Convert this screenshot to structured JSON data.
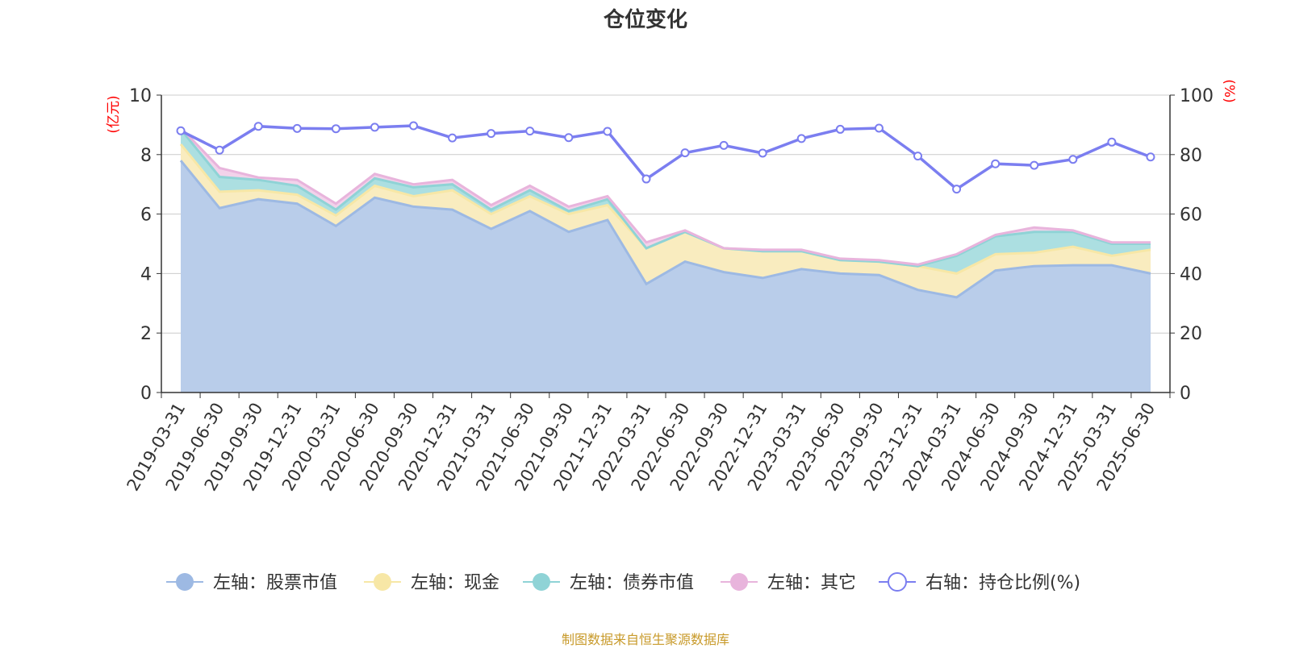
{
  "page": {
    "title": "仓位变化",
    "source": "制图数据来自恒生聚源数据库"
  },
  "chart_data": {
    "type": "area",
    "title": "仓位变化",
    "y_left_unit": "(亿元)",
    "y_right_unit": "(%)",
    "y_left_lim": [
      0,
      10
    ],
    "y_left_ticks": [
      0,
      2,
      4,
      6,
      8,
      10
    ],
    "y_right_lim": [
      0,
      100
    ],
    "y_right_ticks": [
      0,
      20,
      40,
      60,
      80,
      100
    ],
    "grid": true,
    "legend_position": "bottom-center",
    "categories": [
      "2019-03-31",
      "2019-06-30",
      "2019-09-30",
      "2019-12-31",
      "2020-03-31",
      "2020-06-30",
      "2020-09-30",
      "2020-12-31",
      "2021-03-31",
      "2021-06-30",
      "2021-09-30",
      "2021-12-31",
      "2022-03-31",
      "2022-06-30",
      "2022-09-30",
      "2022-12-31",
      "2023-03-31",
      "2023-06-30",
      "2023-09-30",
      "2023-12-31",
      "2024-03-31",
      "2024-06-30",
      "2024-09-30",
      "2024-12-31",
      "2025-03-31",
      "2025-06-30"
    ],
    "series": [
      {
        "name": "左轴：股票市值",
        "axis": "left",
        "kind": "stack",
        "color": "#9db9e3",
        "fill": "#b9cdea",
        "values": [
          7.8,
          6.2,
          6.5,
          6.35,
          5.6,
          6.55,
          6.25,
          6.15,
          5.5,
          6.1,
          5.4,
          5.8,
          3.65,
          4.4,
          4.05,
          3.85,
          4.15,
          4.0,
          3.95,
          3.45,
          3.2,
          4.1,
          4.25,
          4.28,
          4.28,
          4.0
        ]
      },
      {
        "name": "左轴：现金",
        "axis": "left",
        "kind": "stack",
        "color": "#f7e7a6",
        "fill": "#f9ecbf",
        "values": [
          0.55,
          0.55,
          0.3,
          0.3,
          0.35,
          0.4,
          0.35,
          0.65,
          0.5,
          0.5,
          0.6,
          0.5,
          1.2,
          1.0,
          0.8,
          0.9,
          0.6,
          0.45,
          0.45,
          0.8,
          0.8,
          0.55,
          0.45,
          0.62,
          0.32,
          0.8
        ]
      },
      {
        "name": "左轴：债券市值",
        "axis": "left",
        "kind": "stack",
        "color": "#8fd3d6",
        "fill": "#acdfe1",
        "values": [
          0.5,
          0.5,
          0.35,
          0.3,
          0.2,
          0.25,
          0.3,
          0.2,
          0.15,
          0.2,
          0.1,
          0.2,
          0.0,
          0.0,
          0.0,
          0.0,
          0.0,
          0.0,
          0.0,
          0.0,
          0.6,
          0.6,
          0.7,
          0.5,
          0.4,
          0.2
        ]
      },
      {
        "name": "左轴：其它",
        "axis": "left",
        "kind": "stack",
        "color": "#e8b4dc",
        "fill": "#f2d2ea",
        "values": [
          0.05,
          0.3,
          0.08,
          0.2,
          0.2,
          0.15,
          0.1,
          0.15,
          0.15,
          0.15,
          0.15,
          0.1,
          0.2,
          0.05,
          0.0,
          0.05,
          0.05,
          0.05,
          0.05,
          0.05,
          0.05,
          0.05,
          0.15,
          0.05,
          0.05,
          0.05
        ]
      },
      {
        "name": "右轴：持仓比例(%)",
        "axis": "right",
        "kind": "line",
        "color": "#7b7ef0",
        "values": [
          88,
          81.5,
          89.5,
          88.8,
          88.7,
          89.2,
          89.7,
          85.6,
          87.1,
          87.9,
          85.7,
          87.8,
          71.8,
          80.6,
          83.1,
          80.5,
          85.4,
          88.5,
          88.9,
          79.5,
          68.4,
          76.9,
          76.4,
          78.4,
          84.2,
          79.2
        ]
      }
    ]
  }
}
